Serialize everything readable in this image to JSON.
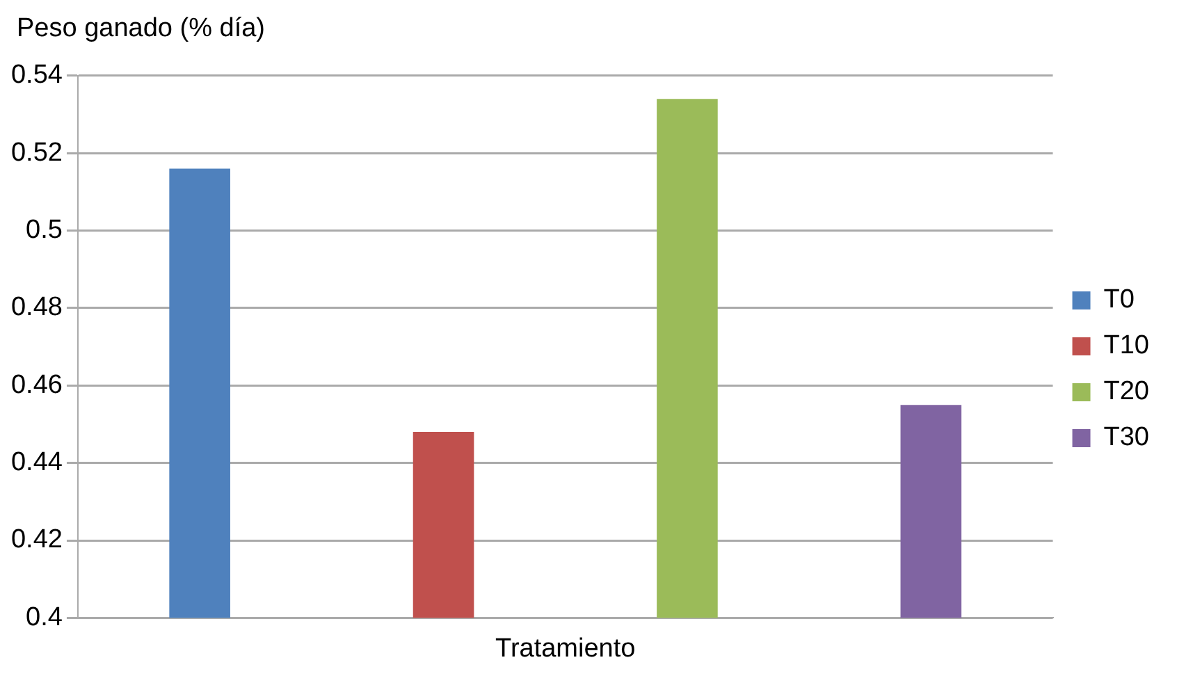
{
  "chart_data": {
    "type": "bar",
    "ylabel": "Peso ganado (% día)",
    "categories": [
      "Tratamiento"
    ],
    "series": [
      {
        "name": "T0",
        "color": "#4f81bd",
        "values": [
          0.516
        ]
      },
      {
        "name": "T10",
        "color": "#c0504d",
        "values": [
          0.448
        ]
      },
      {
        "name": "T20",
        "color": "#9bbb59",
        "values": [
          0.534
        ]
      },
      {
        "name": "T30",
        "color": "#8064a2",
        "values": [
          0.455
        ]
      }
    ],
    "ylim": [
      0.4,
      0.54
    ],
    "yticks": [
      0.4,
      0.42,
      0.44,
      0.46,
      0.48,
      0.5,
      0.52,
      0.54
    ],
    "grid": "y",
    "legend": "right"
  }
}
